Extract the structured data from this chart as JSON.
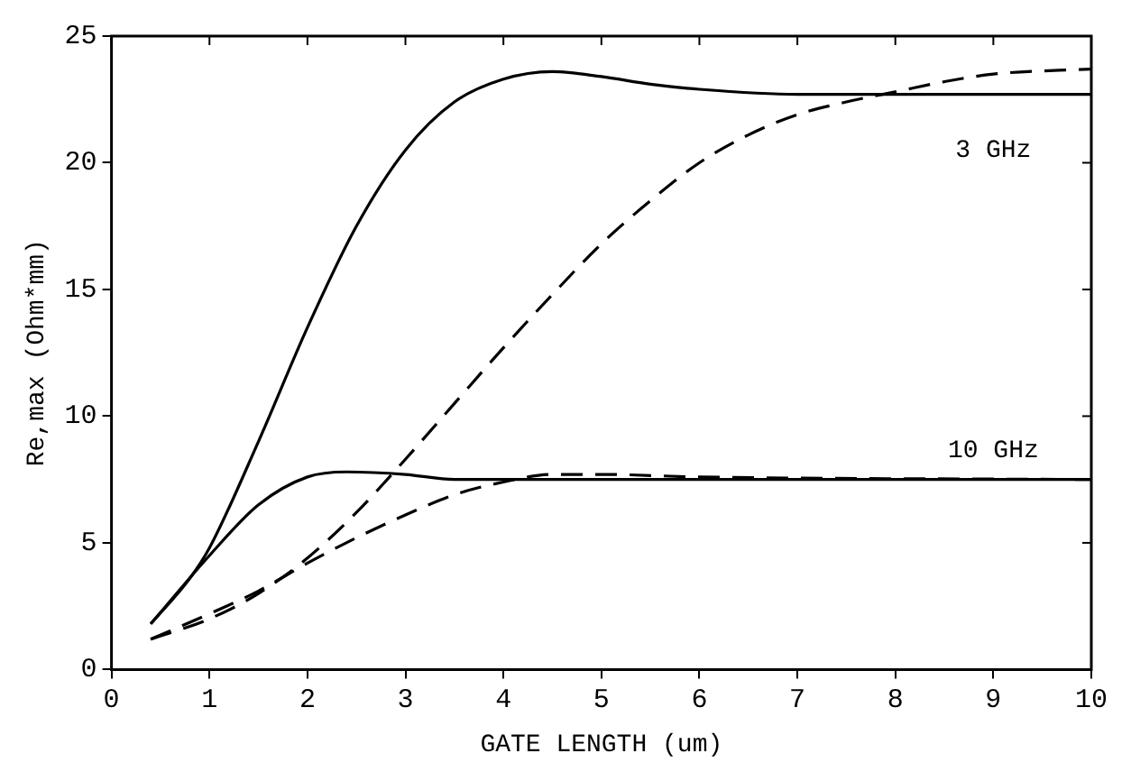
{
  "chart_data": {
    "type": "line",
    "xlabel": "GATE LENGTH (um)",
    "ylabel": "Re,max (Ohm*mm)",
    "xlim": [
      0,
      10
    ],
    "xticks": [
      0,
      1,
      2,
      3,
      4,
      5,
      6,
      7,
      8,
      9,
      10
    ],
    "ylim": [
      0,
      25
    ],
    "yticks": [
      0,
      5,
      10,
      15,
      20,
      25
    ],
    "grid": false,
    "legend": false,
    "marker": "none",
    "series": [
      {
        "color": "#000000",
        "line_style": "solid",
        "x": [
          0.4,
          0.8,
          1,
          1.5,
          2,
          2.5,
          3,
          3.5,
          4,
          4.5,
          5,
          5.5,
          6,
          7,
          8,
          9,
          10
        ],
        "values": [
          1.8,
          3.6,
          4.8,
          9,
          13.5,
          17.5,
          20.5,
          22.4,
          23.3,
          23.6,
          23.4,
          23.1,
          22.9,
          22.7,
          22.7,
          22.7,
          22.7
        ]
      },
      {
        "color": "#000000",
        "line_style": "dashed",
        "x": [
          0.4,
          1,
          1.5,
          2,
          2.5,
          3,
          3.5,
          4,
          4.5,
          5,
          5.5,
          6,
          6.5,
          7,
          7.5,
          8,
          8.5,
          9,
          10
        ],
        "values": [
          1.2,
          2,
          3,
          4.4,
          6.2,
          8.3,
          10.5,
          12.7,
          14.8,
          16.8,
          18.5,
          20,
          21.1,
          21.9,
          22.4,
          22.8,
          23.2,
          23.5,
          23.7
        ]
      },
      {
        "color": "#000000",
        "line_style": "solid",
        "x": [
          0.4,
          1,
          1.5,
          2,
          2.4,
          3,
          3.5,
          4,
          5,
          10
        ],
        "values": [
          1.8,
          4.5,
          6.5,
          7.6,
          7.8,
          7.7,
          7.5,
          7.5,
          7.5,
          7.5
        ]
      },
      {
        "color": "#000000",
        "line_style": "dashed",
        "x": [
          0.4,
          1,
          1.5,
          2,
          2.5,
          3,
          3.5,
          4,
          4.5,
          5,
          6,
          10
        ],
        "values": [
          1.2,
          2.2,
          3.1,
          4.2,
          5.2,
          6.1,
          6.9,
          7.4,
          7.7,
          7.7,
          7.6,
          7.5
        ]
      }
    ],
    "annotations": [
      "3 GHz",
      "10 GHz"
    ]
  }
}
